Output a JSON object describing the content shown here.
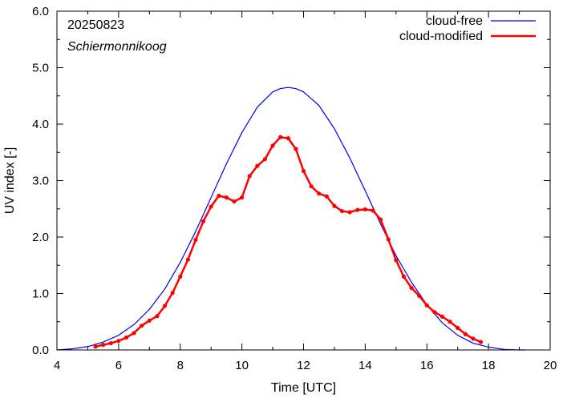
{
  "chart_data": {
    "type": "line",
    "title": "",
    "xlabel": "Time  [UTC]",
    "ylabel": "UV index  [-]",
    "xlim": [
      4,
      20
    ],
    "ylim": [
      0,
      6
    ],
    "xticks": [
      4,
      6,
      8,
      10,
      12,
      14,
      16,
      18,
      20
    ],
    "yticks": [
      0,
      1,
      2,
      3,
      4,
      5,
      6
    ],
    "ytick_labels": [
      "0.0",
      "1.0",
      "2.0",
      "3.0",
      "4.0",
      "5.0",
      "6.0"
    ],
    "grid": false,
    "legend_position": "top-right",
    "annotations": {
      "date": "20250823",
      "location": "Schiermonnikoog"
    },
    "series": [
      {
        "name": "cloud-free",
        "color": "#0000ee",
        "x": [
          4.0,
          4.5,
          5.0,
          5.5,
          6.0,
          6.5,
          7.0,
          7.5,
          8.0,
          8.5,
          9.0,
          9.5,
          10.0,
          10.5,
          11.0,
          11.25,
          11.5,
          11.75,
          12.0,
          12.5,
          13.0,
          13.5,
          14.0,
          14.5,
          15.0,
          15.5,
          16.0,
          16.5,
          17.0,
          17.5,
          18.0,
          18.5,
          19.0,
          19.2
        ],
        "y": [
          0.0,
          0.02,
          0.06,
          0.14,
          0.26,
          0.45,
          0.72,
          1.08,
          1.55,
          2.1,
          2.7,
          3.3,
          3.85,
          4.3,
          4.57,
          4.63,
          4.65,
          4.63,
          4.57,
          4.33,
          3.92,
          3.4,
          2.82,
          2.23,
          1.67,
          1.2,
          0.8,
          0.48,
          0.26,
          0.12,
          0.05,
          0.01,
          0.0,
          0.0
        ]
      },
      {
        "name": "cloud-modified",
        "color": "#ff0000",
        "x": [
          5.25,
          5.5,
          5.75,
          6.0,
          6.25,
          6.5,
          6.75,
          7.0,
          7.25,
          7.5,
          7.75,
          8.0,
          8.25,
          8.5,
          8.75,
          9.0,
          9.25,
          9.5,
          9.75,
          10.0,
          10.25,
          10.5,
          10.75,
          11.0,
          11.25,
          11.5,
          11.75,
          12.0,
          12.25,
          12.5,
          12.75,
          13.0,
          13.25,
          13.5,
          13.75,
          14.0,
          14.25,
          14.5,
          14.75,
          15.0,
          15.25,
          15.5,
          15.75,
          16.0,
          16.25,
          16.5,
          16.75,
          17.0,
          17.25,
          17.5,
          17.75
        ],
        "y": [
          0.06,
          0.09,
          0.12,
          0.16,
          0.22,
          0.3,
          0.43,
          0.52,
          0.6,
          0.78,
          1.01,
          1.3,
          1.6,
          1.95,
          2.28,
          2.54,
          2.73,
          2.7,
          2.63,
          2.7,
          3.08,
          3.26,
          3.38,
          3.62,
          3.77,
          3.75,
          3.56,
          3.17,
          2.9,
          2.77,
          2.72,
          2.55,
          2.46,
          2.44,
          2.48,
          2.49,
          2.47,
          2.31,
          1.96,
          1.59,
          1.3,
          1.1,
          0.96,
          0.79,
          0.67,
          0.59,
          0.5,
          0.39,
          0.28,
          0.2,
          0.14
        ]
      }
    ]
  }
}
